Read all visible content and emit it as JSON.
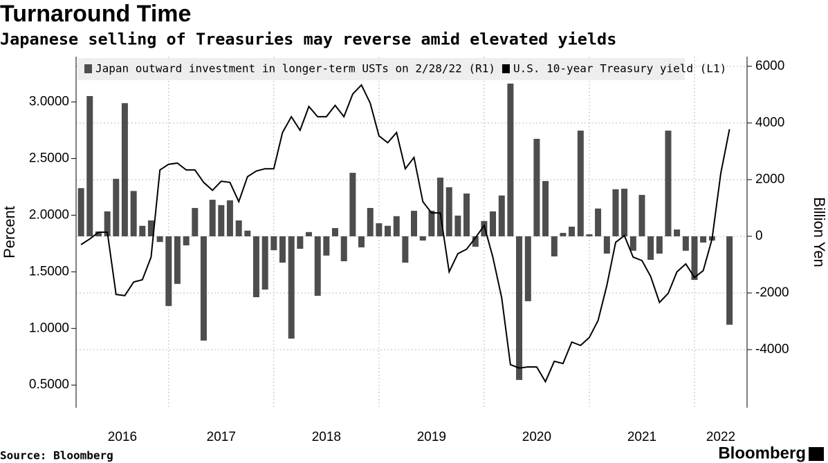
{
  "chart_data": {
    "type": "bar-line",
    "title": "Turnaround Time",
    "subtitle": "Japanese selling of Treasuries may reverse amid elevated yields",
    "source": "Source: Bloomberg",
    "brand": "Bloomberg",
    "ylabel": "Percent",
    "y2label": "Billion Yen",
    "xlim": [
      2016.12,
      2022.5
    ],
    "xticks": [
      2017,
      2018,
      2019,
      2020,
      2021,
      2022
    ],
    "year_labels": [
      "2016",
      "2017",
      "2018",
      "2019",
      "2020",
      "2021",
      "2022"
    ],
    "ylim": [
      0.3,
      3.4
    ],
    "yticks": [
      {
        "value": 0.5,
        "label": "0.5000"
      },
      {
        "value": 1.0,
        "label": "1.0000"
      },
      {
        "value": 1.5,
        "label": "1.5000"
      },
      {
        "value": 2.0,
        "label": "2.0000"
      },
      {
        "value": 2.5,
        "label": "2.5000"
      },
      {
        "value": 3.0,
        "label": "3.0000"
      }
    ],
    "y2lim": [
      -6050,
      6340
    ],
    "y2ticks": [
      -4000,
      -2000,
      0,
      2000,
      4000,
      6000
    ],
    "grid": true,
    "series": [
      {
        "name": "Japan outward investment in longer-term USTs on 2/28/22 (R1)",
        "type": "bar",
        "axis": "y2",
        "color": "#4d4d4d",
        "x": [
          2016.167,
          2016.25,
          2016.333,
          2016.417,
          2016.5,
          2016.583,
          2016.667,
          2016.75,
          2016.833,
          2016.917,
          2017.0,
          2017.083,
          2017.167,
          2017.25,
          2017.333,
          2017.417,
          2017.5,
          2017.583,
          2017.667,
          2017.75,
          2017.833,
          2017.917,
          2018.0,
          2018.083,
          2018.167,
          2018.25,
          2018.333,
          2018.417,
          2018.5,
          2018.583,
          2018.667,
          2018.75,
          2018.833,
          2018.917,
          2019.0,
          2019.083,
          2019.167,
          2019.25,
          2019.333,
          2019.417,
          2019.5,
          2019.583,
          2019.667,
          2019.75,
          2019.833,
          2019.917,
          2020.0,
          2020.083,
          2020.167,
          2020.25,
          2020.333,
          2020.417,
          2020.5,
          2020.583,
          2020.667,
          2020.75,
          2020.833,
          2020.917,
          2021.0,
          2021.083,
          2021.167,
          2021.25,
          2021.333,
          2021.417,
          2021.5,
          2021.583,
          2021.667,
          2021.75,
          2021.833,
          2021.917,
          2022.0,
          2022.083,
          2022.167,
          2022.333
        ],
        "values": [
          1700,
          4950,
          170,
          880,
          2030,
          4700,
          1600,
          370,
          560,
          -200,
          -2460,
          -1680,
          -320,
          1000,
          -3680,
          1290,
          1100,
          1270,
          560,
          200,
          -2150,
          -1880,
          -490,
          -930,
          -3610,
          -440,
          150,
          -2100,
          -680,
          290,
          -880,
          2240,
          -390,
          1000,
          460,
          370,
          710,
          -930,
          900,
          -150,
          900,
          2070,
          1730,
          730,
          1510,
          -370,
          540,
          880,
          1440,
          5390,
          -5070,
          -2290,
          3440,
          1950,
          -710,
          120,
          340,
          3730,
          70,
          980,
          -610,
          1660,
          1680,
          -510,
          1460,
          -830,
          -610,
          3730,
          240,
          -510,
          -1540,
          -220,
          -150,
          -3120
        ]
      },
      {
        "name": "U.S. 10-year Treasury yield (L1)",
        "type": "line",
        "axis": "y",
        "color": "#000000",
        "x": [
          2016.167,
          2016.25,
          2016.333,
          2016.417,
          2016.5,
          2016.583,
          2016.667,
          2016.75,
          2016.833,
          2016.917,
          2017.0,
          2017.083,
          2017.167,
          2017.25,
          2017.333,
          2017.417,
          2017.5,
          2017.583,
          2017.667,
          2017.75,
          2017.833,
          2017.917,
          2018.0,
          2018.083,
          2018.167,
          2018.25,
          2018.333,
          2018.417,
          2018.5,
          2018.583,
          2018.667,
          2018.75,
          2018.833,
          2018.917,
          2019.0,
          2019.083,
          2019.167,
          2019.25,
          2019.333,
          2019.417,
          2019.5,
          2019.583,
          2019.667,
          2019.75,
          2019.833,
          2019.917,
          2020.0,
          2020.083,
          2020.167,
          2020.25,
          2020.333,
          2020.417,
          2020.5,
          2020.583,
          2020.667,
          2020.75,
          2020.833,
          2020.917,
          2021.0,
          2021.083,
          2021.167,
          2021.25,
          2021.333,
          2021.417,
          2021.5,
          2021.583,
          2021.667,
          2021.75,
          2021.833,
          2021.917,
          2022.0,
          2022.083,
          2022.167,
          2022.25,
          2022.333
        ],
        "values": [
          1.74,
          1.79,
          1.85,
          1.85,
          1.3,
          1.29,
          1.41,
          1.43,
          1.63,
          2.4,
          2.45,
          2.46,
          2.4,
          2.4,
          2.29,
          2.22,
          2.3,
          2.29,
          2.12,
          2.34,
          2.39,
          2.41,
          2.41,
          2.73,
          2.87,
          2.75,
          2.96,
          2.87,
          2.87,
          2.97,
          2.87,
          3.07,
          3.15,
          2.99,
          2.7,
          2.64,
          2.73,
          2.41,
          2.51,
          2.12,
          2.02,
          2.02,
          1.5,
          1.66,
          1.7,
          1.8,
          1.91,
          1.63,
          1.27,
          0.68,
          0.65,
          0.66,
          0.66,
          0.53,
          0.71,
          0.69,
          0.88,
          0.85,
          0.92,
          1.07,
          1.38,
          1.76,
          1.82,
          1.63,
          1.6,
          1.46,
          1.23,
          1.31,
          1.5,
          1.57,
          1.45,
          1.51,
          1.79,
          2.37,
          2.76
        ]
      }
    ]
  }
}
